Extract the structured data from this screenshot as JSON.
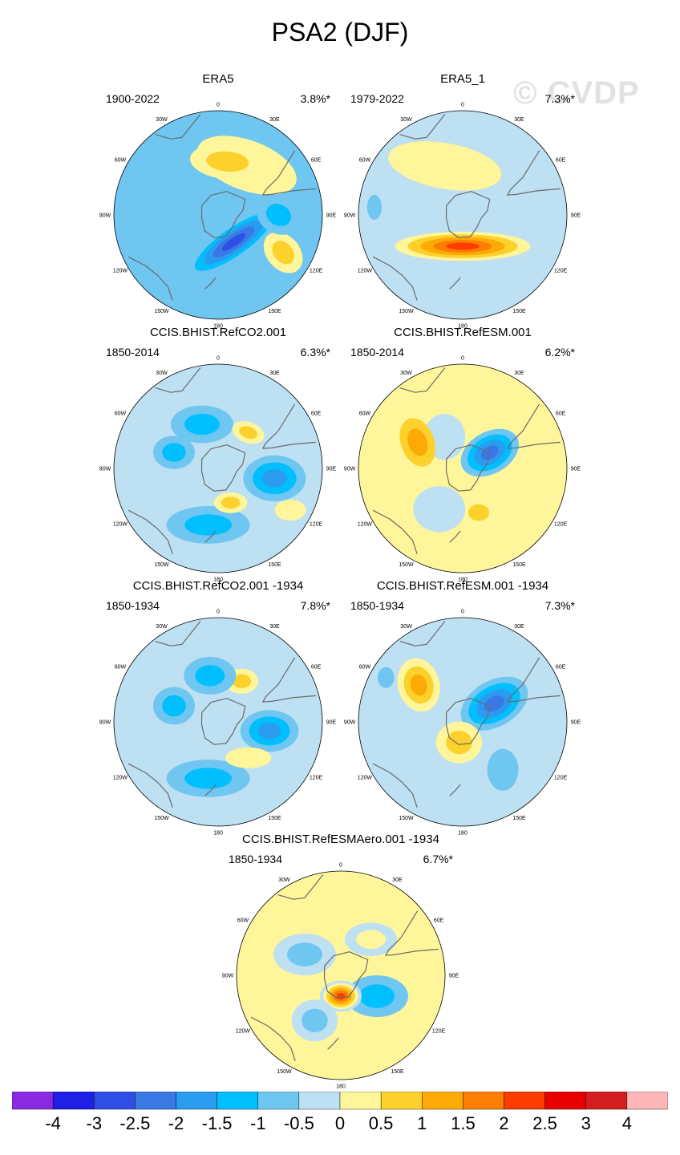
{
  "figure": {
    "title": "PSA2 (DJF)",
    "watermark": "© CVDP"
  },
  "panels": [
    {
      "title": "ERA5",
      "period": "1900-2022",
      "percent": "3.8%*"
    },
    {
      "title": "ERA5_1",
      "period": "1979-2022",
      "percent": "7.3%*"
    },
    {
      "title": "CCIS.BHIST.RefCO2.001",
      "period": "1850-2014",
      "percent": "6.3%*"
    },
    {
      "title": "CCIS.BHIST.RefESM.001",
      "period": "1850-2014",
      "percent": "6.2%*"
    },
    {
      "title": "CCIS.BHIST.RefCO2.001 -1934",
      "period": "1850-1934",
      "percent": "7.8%*"
    },
    {
      "title": "CCIS.BHIST.RefESM.001 -1934",
      "period": "1850-1934",
      "percent": "7.3%*"
    },
    {
      "title": "CCIS.BHIST.RefESMAero.001 -1934",
      "period": "1850-1934",
      "percent": "6.7%*"
    }
  ],
  "lon_labels": [
    "0",
    "30E",
    "60E",
    "90E",
    "120E",
    "150E",
    "180",
    "150W",
    "120W",
    "90W",
    "60W",
    "30W"
  ],
  "colorbar": {
    "labels": [
      "-4",
      "-3",
      "-2.5",
      "-2",
      "-1.5",
      "-1",
      "-0.5",
      "0",
      "0.5",
      "1",
      "1.5",
      "2",
      "2.5",
      "3",
      "4"
    ],
    "colors": [
      "#8a2be2",
      "#1f1fe6",
      "#2e4ee6",
      "#3a78e6",
      "#2a9cf0",
      "#00bfff",
      "#6fc6f0",
      "#bde0f2",
      "#fff59a",
      "#fcd12c",
      "#fdaa06",
      "#fd7e00",
      "#fd3c00",
      "#e60000",
      "#d21e1e",
      "#fcb6b6"
    ]
  },
  "maps": [
    {
      "bg": 6,
      "blobs": [
        {
          "lon": -30,
          "r": 0.55,
          "rx": 0.5,
          "ry": 0.24,
          "rot": 20,
          "levels": [
            8
          ]
        },
        {
          "lon": -10,
          "r": 0.52,
          "rx": 0.36,
          "ry": 0.17,
          "rot": 5,
          "levels": [
            8,
            9
          ]
        },
        {
          "lon": -120,
          "r": 0.72,
          "rx": 0.22,
          "ry": 0.16,
          "rot": 50,
          "levels": [
            8,
            9
          ]
        },
        {
          "lon": -150,
          "r": 0.3,
          "rx": 0.55,
          "ry": 0.16,
          "rot": -35,
          "levels": [
            6,
            5,
            4,
            3,
            2
          ]
        },
        {
          "lon": -90,
          "r": 0.58,
          "rx": 0.22,
          "ry": 0.18,
          "rot": 30,
          "levels": [
            6,
            5
          ]
        }
      ]
    },
    {
      "bg": 7,
      "blobs": [
        {
          "lon": 20,
          "r": 0.5,
          "rx": 0.55,
          "ry": 0.22,
          "rot": 10,
          "levels": [
            8
          ]
        },
        {
          "lon": 180,
          "r": 0.3,
          "rx": 0.65,
          "ry": 0.14,
          "rot": 0,
          "levels": [
            8,
            9,
            10,
            11,
            12
          ]
        },
        {
          "lon": 85,
          "r": 0.85,
          "rx": 0.07,
          "ry": 0.12,
          "rot": 0,
          "levels": [
            6
          ]
        }
      ]
    },
    {
      "bg": 7,
      "blobs": [
        {
          "lon": 20,
          "r": 0.45,
          "rx": 0.3,
          "ry": 0.18,
          "rot": 0,
          "levels": [
            6,
            5
          ]
        },
        {
          "lon": 70,
          "r": 0.45,
          "rx": 0.2,
          "ry": 0.16,
          "rot": 0,
          "levels": [
            6,
            5
          ]
        },
        {
          "lon": -100,
          "r": 0.55,
          "rx": 0.3,
          "ry": 0.22,
          "rot": 0,
          "levels": [
            6,
            5,
            4
          ]
        },
        {
          "lon": -40,
          "r": 0.45,
          "rx": 0.16,
          "ry": 0.1,
          "rot": 20,
          "levels": [
            8,
            9
          ]
        },
        {
          "lon": 170,
          "r": 0.55,
          "rx": 0.4,
          "ry": 0.18,
          "rot": 0,
          "levels": [
            6,
            5
          ]
        },
        {
          "lon": -160,
          "r": 0.35,
          "rx": 0.16,
          "ry": 0.1,
          "rot": 0,
          "levels": [
            8,
            9
          ]
        },
        {
          "lon": -120,
          "r": 0.8,
          "rx": 0.15,
          "ry": 0.1,
          "rot": 0,
          "levels": [
            8
          ]
        }
      ]
    },
    {
      "bg": 8,
      "blobs": [
        {
          "lon": 30,
          "r": 0.35,
          "rx": 0.2,
          "ry": 0.22,
          "rot": 0,
          "levels": [
            7
          ]
        },
        {
          "lon": -60,
          "r": 0.3,
          "rx": 0.3,
          "ry": 0.2,
          "rot": -30,
          "levels": [
            6,
            5,
            4,
            3
          ]
        },
        {
          "lon": 60,
          "r": 0.5,
          "rx": 0.16,
          "ry": 0.24,
          "rot": -20,
          "levels": [
            9,
            10
          ]
        },
        {
          "lon": 150,
          "r": 0.45,
          "rx": 0.25,
          "ry": 0.22,
          "rot": 0,
          "levels": [
            7
          ]
        },
        {
          "lon": -160,
          "r": 0.45,
          "rx": 0.1,
          "ry": 0.08,
          "rot": 0,
          "levels": [
            9
          ]
        }
      ]
    },
    {
      "bg": 7,
      "blobs": [
        {
          "lon": -30,
          "r": 0.45,
          "rx": 0.16,
          "ry": 0.12,
          "rot": 0,
          "levels": [
            8,
            9
          ]
        },
        {
          "lon": 10,
          "r": 0.45,
          "rx": 0.25,
          "ry": 0.18,
          "rot": 0,
          "levels": [
            6,
            5
          ]
        },
        {
          "lon": 70,
          "r": 0.45,
          "rx": 0.2,
          "ry": 0.18,
          "rot": 0,
          "levels": [
            6,
            5
          ]
        },
        {
          "lon": -100,
          "r": 0.5,
          "rx": 0.28,
          "ry": 0.2,
          "rot": 0,
          "levels": [
            6,
            5,
            4
          ]
        },
        {
          "lon": 170,
          "r": 0.55,
          "rx": 0.4,
          "ry": 0.18,
          "rot": 0,
          "levels": [
            6,
            5
          ]
        },
        {
          "lon": -140,
          "r": 0.45,
          "rx": 0.22,
          "ry": 0.1,
          "rot": 0,
          "levels": [
            8
          ]
        }
      ]
    },
    {
      "bg": 7,
      "blobs": [
        {
          "lon": -60,
          "r": 0.35,
          "rx": 0.35,
          "ry": 0.22,
          "rot": -30,
          "levels": [
            6,
            5,
            4,
            3
          ]
        },
        {
          "lon": 50,
          "r": 0.55,
          "rx": 0.2,
          "ry": 0.26,
          "rot": -15,
          "levels": [
            8,
            9,
            10
          ]
        },
        {
          "lon": 170,
          "r": 0.2,
          "rx": 0.22,
          "ry": 0.2,
          "rot": 0,
          "levels": [
            8,
            9
          ]
        },
        {
          "lon": -140,
          "r": 0.6,
          "rx": 0.15,
          "ry": 0.2,
          "rot": 0,
          "levels": [
            6
          ]
        },
        {
          "lon": 60,
          "r": 0.85,
          "rx": 0.08,
          "ry": 0.1,
          "rot": 0,
          "levels": [
            6
          ]
        }
      ]
    },
    {
      "bg": 8,
      "blobs": [
        {
          "lon": -40,
          "r": 0.45,
          "rx": 0.25,
          "ry": 0.16,
          "rot": 0,
          "levels": [
            7,
            8
          ]
        },
        {
          "lon": 60,
          "r": 0.4,
          "rx": 0.3,
          "ry": 0.2,
          "rot": 0,
          "levels": [
            7,
            6
          ]
        },
        {
          "lon": -120,
          "r": 0.4,
          "rx": 0.3,
          "ry": 0.2,
          "rot": 0,
          "levels": [
            6,
            5
          ]
        },
        {
          "lon": 180,
          "r": 0.2,
          "rx": 0.2,
          "ry": 0.15,
          "rot": 0,
          "levels": [
            7,
            8,
            9,
            10,
            11,
            12
          ]
        },
        {
          "lon": 150,
          "r": 0.5,
          "rx": 0.22,
          "ry": 0.2,
          "rot": 0,
          "levels": [
            7,
            6
          ]
        }
      ]
    }
  ]
}
